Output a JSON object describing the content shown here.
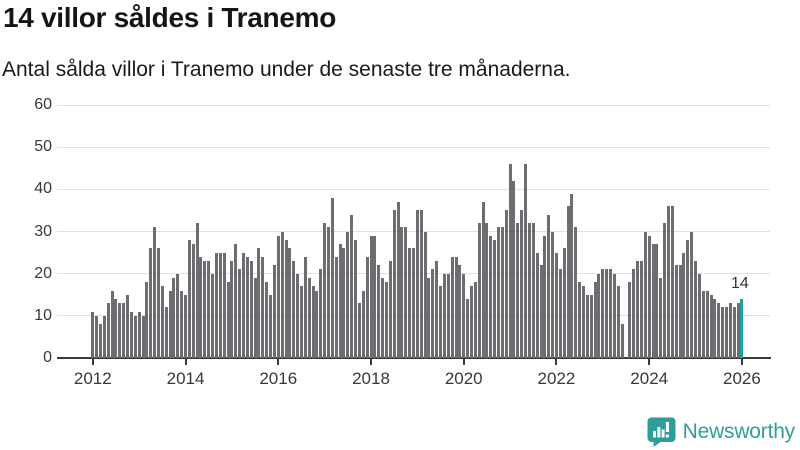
{
  "header": {
    "title": "14 villor såldes i Tranemo",
    "subtitle": "Antal sålda villor i Tranemo under de senaste tre månaderna."
  },
  "chart_data": {
    "type": "bar",
    "title": "14 villor såldes i Tranemo",
    "subtitle": "Antal sålda villor i Tranemo under de senaste tre månaderna.",
    "frequency": "monthly",
    "x_start_year": 2012,
    "x_tick_labels": [
      "2012",
      "2014",
      "2016",
      "2018",
      "2020",
      "2022",
      "2024",
      "2026"
    ],
    "y_ticks": [
      0,
      10,
      20,
      30,
      40,
      50,
      60
    ],
    "ylim": [
      0,
      60
    ],
    "grid": "horizontal",
    "legend": "none",
    "bar_color": "#6d6d71",
    "highlight_color": "#1aa2a2",
    "values": [
      11,
      10,
      8,
      10,
      13,
      16,
      14,
      13,
      13,
      15,
      11,
      10,
      11,
      10,
      18,
      26,
      31,
      26,
      17,
      12,
      16,
      19,
      20,
      16,
      15,
      28,
      27,
      32,
      24,
      23,
      23,
      20,
      25,
      25,
      25,
      18,
      23,
      27,
      21,
      25,
      24,
      23,
      19,
      26,
      24,
      18,
      15,
      22,
      29,
      30,
      28,
      26,
      23,
      20,
      17,
      24,
      19,
      17,
      16,
      21,
      32,
      31,
      38,
      24,
      27,
      26,
      30,
      34,
      28,
      13,
      16,
      24,
      29,
      29,
      22,
      19,
      18,
      23,
      35,
      37,
      31,
      31,
      26,
      26,
      35,
      35,
      30,
      19,
      21,
      23,
      17,
      20,
      20,
      24,
      24,
      22,
      20,
      14,
      17,
      18,
      32,
      37,
      32,
      29,
      28,
      31,
      31,
      35,
      46,
      42,
      32,
      35,
      46,
      32,
      32,
      25,
      22,
      29,
      34,
      30,
      25,
      21,
      26,
      36,
      39,
      31,
      18,
      17,
      15,
      15,
      18,
      20,
      21,
      21,
      21,
      20,
      17,
      8,
      0,
      18,
      21,
      23,
      23,
      30,
      29,
      27,
      27,
      19,
      32,
      36,
      36,
      22,
      22,
      25,
      28,
      30,
      23,
      20,
      16,
      16,
      15,
      14,
      13,
      12,
      12,
      13,
      12,
      13,
      14
    ],
    "highlight_index": 168,
    "highlight_label": "14"
  },
  "branding": {
    "name": "Newsworthy",
    "icon": "newsworthy-speech-bubble-chart-icon",
    "color": "#2f9e9b"
  },
  "colors": {
    "background": "#ffffff",
    "grid": "#e1e1e1",
    "axis": "#3a3a3a",
    "text": "#1a1a1a",
    "tick_text": "#383838",
    "bar": "#6d6d71",
    "highlight": "#1aa2a2"
  }
}
